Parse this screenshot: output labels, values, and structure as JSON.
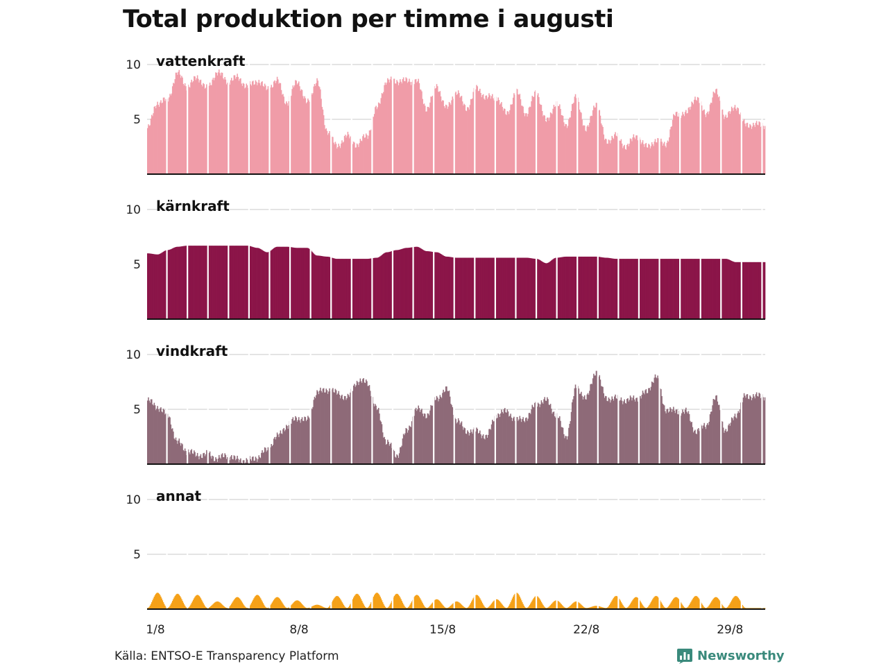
{
  "title": "Total produktion per timme i augusti",
  "source": "Källa: ENTSO-E Transparency Platform",
  "brand": {
    "name": "Newsworthy",
    "icon": "bar-chart-icon",
    "color": "#3a8a7c"
  },
  "chart_data": {
    "type": "area",
    "title": "Total produktion per timme i augusti",
    "x_unit": "day of August",
    "x_range": [
      1,
      31
    ],
    "x_ticks": [
      {
        "x": 1,
        "label": "1/8"
      },
      {
        "x": 8,
        "label": "8/8"
      },
      {
        "x": 15,
        "label": "15/8"
      },
      {
        "x": 22,
        "label": "22/8"
      },
      {
        "x": 29,
        "label": "29/8"
      }
    ],
    "ylim": [
      0,
      10
    ],
    "y_ticks": [
      5,
      10
    ],
    "grid": true,
    "series": [
      {
        "name": "vattenkraft",
        "color": "#f09ca8",
        "keyframes": {
          "x": [
            1.0,
            1.5,
            2.0,
            2.5,
            3.0,
            3.5,
            4.0,
            4.5,
            5.0,
            5.5,
            6.0,
            6.5,
            7.0,
            7.5,
            8.0,
            8.5,
            9.0,
            9.5,
            10.0,
            10.5,
            11.0,
            11.5,
            12.0,
            12.5,
            13.0,
            13.5,
            14.0,
            14.5,
            15.0,
            15.5,
            16.0,
            16.5,
            17.0,
            17.5,
            18.0,
            18.5,
            19.0,
            19.5,
            20.0,
            20.5,
            21.0,
            21.5,
            22.0,
            22.5,
            23.0,
            23.5,
            24.0,
            24.5,
            25.0,
            25.5,
            26.0,
            26.5,
            27.0,
            27.5,
            28.0,
            28.5,
            29.0,
            29.5,
            30.0,
            30.5,
            31.0
          ],
          "y": [
            4.2,
            6.5,
            6.8,
            9.2,
            8.0,
            8.8,
            7.8,
            9.3,
            8.5,
            8.8,
            8.0,
            8.5,
            7.8,
            8.5,
            6.5,
            8.5,
            6.5,
            8.5,
            4.0,
            2.5,
            3.5,
            2.7,
            3.5,
            6.0,
            8.5,
            8.5,
            8.5,
            8.5,
            6.0,
            8.0,
            6.0,
            7.5,
            6.0,
            7.8,
            7.0,
            7.0,
            5.5,
            7.5,
            5.5,
            7.5,
            4.8,
            6.5,
            4.5,
            7.0,
            4.0,
            6.5,
            3.0,
            3.5,
            2.5,
            3.5,
            2.5,
            3.0,
            2.8,
            5.5,
            5.5,
            7.0,
            5.5,
            7.5,
            5.2,
            6.2,
            4.5
          ]
        }
      },
      {
        "name": "kärnkraft",
        "color": "#8b1548",
        "keyframes": {
          "x": [
            1.0,
            1.5,
            2.0,
            2.5,
            3.0,
            3.5,
            4.0,
            4.5,
            5.0,
            5.5,
            6.0,
            6.5,
            7.0,
            7.5,
            8.0,
            8.5,
            9.0,
            9.5,
            10.0,
            10.5,
            11.0,
            11.5,
            12.0,
            12.5,
            13.0,
            13.5,
            14.0,
            14.5,
            15.0,
            15.5,
            16.0,
            16.5,
            17.0,
            17.5,
            18.0,
            18.5,
            19.0,
            19.5,
            20.0,
            20.5,
            21.0,
            21.5,
            22.0,
            22.5,
            23.0,
            23.5,
            24.0,
            24.5,
            25.0,
            25.5,
            26.0,
            26.5,
            27.0,
            27.5,
            28.0,
            28.5,
            29.0,
            29.5,
            30.0,
            30.5,
            31.0
          ],
          "y": [
            6.0,
            5.9,
            6.3,
            6.6,
            6.7,
            6.7,
            6.7,
            6.7,
            6.7,
            6.7,
            6.7,
            6.5,
            6.1,
            6.6,
            6.6,
            6.5,
            6.5,
            5.8,
            5.7,
            5.5,
            5.5,
            5.5,
            5.5,
            5.6,
            6.1,
            6.3,
            6.5,
            6.6,
            6.2,
            6.1,
            5.7,
            5.6,
            5.6,
            5.6,
            5.6,
            5.6,
            5.6,
            5.6,
            5.6,
            5.5,
            5.1,
            5.6,
            5.7,
            5.7,
            5.7,
            5.7,
            5.6,
            5.5,
            5.5,
            5.5,
            5.5,
            5.5,
            5.5,
            5.5,
            5.5,
            5.5,
            5.5,
            5.5,
            5.5,
            5.2,
            5.2
          ]
        }
      },
      {
        "name": "vindkraft",
        "color": "#8e6a78",
        "keyframes": {
          "x": [
            1.0,
            1.5,
            2.0,
            2.5,
            3.0,
            3.5,
            4.0,
            4.5,
            5.0,
            5.5,
            6.0,
            6.5,
            7.0,
            7.5,
            8.0,
            8.5,
            9.0,
            9.5,
            10.0,
            10.5,
            11.0,
            11.5,
            12.0,
            12.5,
            13.0,
            13.5,
            14.0,
            14.5,
            15.0,
            15.5,
            16.0,
            16.5,
            17.0,
            17.5,
            18.0,
            18.5,
            19.0,
            19.5,
            20.0,
            20.5,
            21.0,
            21.5,
            22.0,
            22.5,
            23.0,
            23.5,
            24.0,
            24.5,
            25.0,
            25.5,
            26.0,
            26.5,
            27.0,
            27.5,
            28.0,
            28.5,
            29.0,
            29.5,
            30.0,
            30.5,
            31.0
          ],
          "y": [
            5.8,
            5.2,
            4.5,
            2.0,
            1.2,
            0.8,
            0.9,
            0.5,
            0.8,
            0.4,
            0.3,
            0.6,
            1.3,
            2.5,
            3.5,
            4.2,
            4.0,
            6.5,
            6.8,
            6.5,
            6.0,
            7.5,
            7.5,
            5.0,
            2.0,
            0.8,
            3.0,
            5.0,
            4.5,
            6.0,
            6.8,
            4.0,
            3.0,
            3.0,
            2.5,
            4.5,
            4.8,
            4.0,
            4.2,
            5.5,
            5.8,
            4.5,
            2.5,
            7.0,
            6.0,
            8.5,
            6.0,
            6.0,
            5.8,
            6.0,
            6.5,
            8.0,
            5.0,
            4.8,
            4.8,
            3.0,
            3.5,
            6.0,
            3.0,
            4.5,
            6.2
          ]
        }
      },
      {
        "name": "annat",
        "color": "#f5a118",
        "keyframes": {
          "x": [
            1.0,
            1.5,
            2.0,
            2.5,
            3.0,
            3.5,
            4.0,
            4.5,
            5.0,
            5.5,
            6.0,
            6.5,
            7.0,
            7.5,
            8.0,
            8.5,
            9.0,
            9.5,
            10.0,
            10.5,
            11.0,
            11.5,
            12.0,
            12.5,
            13.0,
            13.5,
            14.0,
            14.5,
            15.0,
            15.5,
            16.0,
            16.5,
            17.0,
            17.5,
            18.0,
            18.5,
            19.0,
            19.5,
            20.0,
            20.5,
            21.0,
            21.5,
            22.0,
            22.5,
            23.0,
            23.5,
            24.0,
            24.5,
            25.0,
            25.5,
            26.0,
            26.5,
            27.0,
            27.5,
            28.0,
            28.5,
            29.0,
            29.5,
            30.0,
            30.5,
            31.0
          ],
          "y": [
            0.1,
            1.5,
            0.1,
            1.4,
            0.1,
            1.3,
            0.1,
            0.7,
            0.1,
            1.1,
            0.1,
            1.3,
            0.1,
            1.1,
            0.1,
            0.8,
            0.1,
            0.4,
            0.1,
            1.2,
            0.1,
            1.4,
            0.1,
            1.5,
            0.1,
            1.4,
            0.1,
            1.3,
            0.1,
            0.9,
            0.1,
            0.7,
            0.1,
            1.3,
            0.1,
            0.9,
            0.1,
            1.5,
            0.1,
            1.2,
            0.1,
            0.8,
            0.1,
            0.7,
            0.1,
            0.3,
            0.1,
            1.2,
            0.1,
            1.1,
            0.1,
            1.2,
            0.1,
            1.1,
            0.1,
            1.2,
            0.1,
            1.1,
            0.1,
            1.2,
            0.1
          ]
        }
      }
    ]
  }
}
